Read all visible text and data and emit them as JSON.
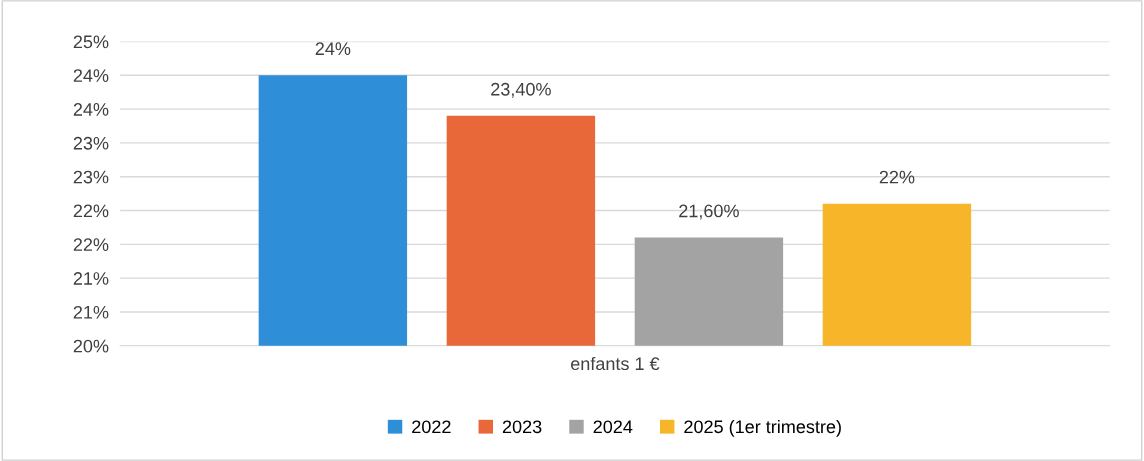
{
  "chart_data": {
    "type": "bar",
    "categories": [
      "enfants 1 €"
    ],
    "series": [
      {
        "name": "2022",
        "color": "#2e8fd8",
        "values": [
          24.0
        ],
        "value_labels": [
          "24%"
        ]
      },
      {
        "name": "2023",
        "color": "#e8683a",
        "values": [
          23.4
        ],
        "value_labels": [
          "23,40%"
        ]
      },
      {
        "name": "2024",
        "color": "#a3a3a3",
        "values": [
          21.6
        ],
        "value_labels": [
          "21,60%"
        ]
      },
      {
        "name": "2025 (1er trimestre)",
        "color": "#f7b52a",
        "values": [
          22.1
        ],
        "value_labels": [
          "22%"
        ]
      }
    ],
    "ylim": [
      20,
      24.5
    ],
    "yticks": [
      {
        "value": 20,
        "label": "20%"
      },
      {
        "value": 20.5,
        "label": "21%"
      },
      {
        "value": 21,
        "label": "21%"
      },
      {
        "value": 21.5,
        "label": "22%"
      },
      {
        "value": 22,
        "label": "22%"
      },
      {
        "value": 22.5,
        "label": "23%"
      },
      {
        "value": 23,
        "label": "23%"
      },
      {
        "value": 23.5,
        "label": "24%"
      },
      {
        "value": 24,
        "label": "24%"
      },
      {
        "value": 24.5,
        "label": "25%"
      }
    ],
    "grid": "y",
    "legend": "bottom"
  }
}
